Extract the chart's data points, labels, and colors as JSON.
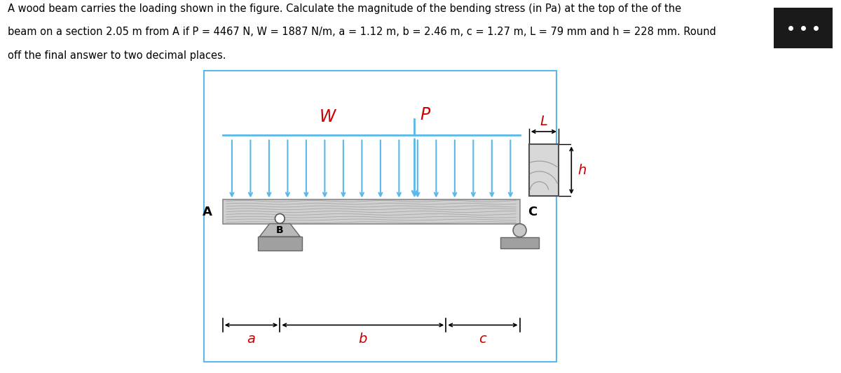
{
  "title_line1": "A wood beam carries the loading shown in the figure. Calculate the magnitude of the bending stress (in Pa) at the top of the of the",
  "title_line2": "beam on a section 2.05 m from A if P = 4467 N, W = 1887 N/m, a = 1.12 m, b = 2.46 m, c = 1.27 m, L = 79 mm and h = 228 mm. Round",
  "title_line3": "off the final answer to two decimal places.",
  "bg_color": "#ffffff",
  "box_color": "#5bb8e8",
  "arrow_color": "#5bb8e8",
  "label_color": "#cc0000",
  "black": "#000000",
  "gray_beam": "#c8c8c8",
  "gray_support": "#a0a0a0",
  "fig_width": 12.0,
  "fig_height": 5.33
}
